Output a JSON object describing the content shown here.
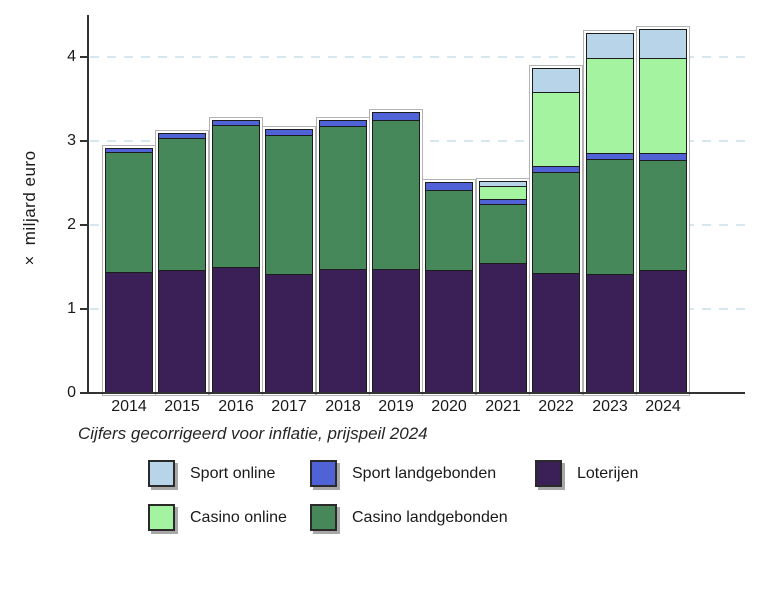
{
  "chart_data": {
    "type": "bar",
    "stacked": true,
    "title": "",
    "ylabel": "× miljard euro",
    "xlabel": "",
    "caption": "Cijfers gecorrigeerd voor inflatie, prijspeil 2024",
    "categories": [
      "2014",
      "2015",
      "2016",
      "2017",
      "2018",
      "2019",
      "2020",
      "2021",
      "2022",
      "2023",
      "2024"
    ],
    "series": [
      {
        "name": "Loterijen",
        "color": "#3a2057",
        "values": [
          1.44,
          1.46,
          1.5,
          1.42,
          1.48,
          1.48,
          1.47,
          1.55,
          1.43,
          1.42,
          1.46
        ]
      },
      {
        "name": "Casino landgebonden",
        "color": "#46885a",
        "values": [
          1.43,
          1.57,
          1.69,
          1.66,
          1.7,
          1.77,
          0.95,
          0.7,
          1.2,
          1.37,
          1.31
        ]
      },
      {
        "name": "Sport landgebonden",
        "color": "#4f63d7",
        "values": [
          0.05,
          0.06,
          0.06,
          0.07,
          0.07,
          0.09,
          0.1,
          0.06,
          0.07,
          0.07,
          0.08
        ]
      },
      {
        "name": "Casino online",
        "color": "#a4f3a0",
        "values": [
          0,
          0,
          0,
          0,
          0,
          0,
          0,
          0.16,
          0.88,
          1.13,
          1.13
        ]
      },
      {
        "name": "Sport online",
        "color": "#b7d4e8",
        "values": [
          0,
          0,
          0,
          0,
          0,
          0,
          0,
          0.06,
          0.28,
          0.3,
          0.35
        ]
      }
    ],
    "totals": [
      2.92,
      3.09,
      3.25,
      3.15,
      3.25,
      3.34,
      2.52,
      2.53,
      3.86,
      4.29,
      4.33
    ],
    "ylim": [
      0,
      4.4
    ],
    "yticks": [
      "0",
      "1",
      "2",
      "3",
      "4"
    ],
    "grid": "horizontal dashed at 1,2,3,4",
    "legend_position": "bottom"
  },
  "legend": {
    "items": [
      {
        "label": "Sport online",
        "color": "#b7d4e8"
      },
      {
        "label": "Sport landgebonden",
        "color": "#4f63d7"
      },
      {
        "label": "Loterijen",
        "color": "#3a2057"
      },
      {
        "label": "Casino online",
        "color": "#a4f3a0"
      },
      {
        "label": "Casino landgebonden",
        "color": "#46885a"
      }
    ]
  },
  "colors": {
    "axis": "#333333",
    "gridline": "#d7e7ef",
    "text": "#1a1a1a",
    "segment_outline": "#1c1c1c"
  }
}
